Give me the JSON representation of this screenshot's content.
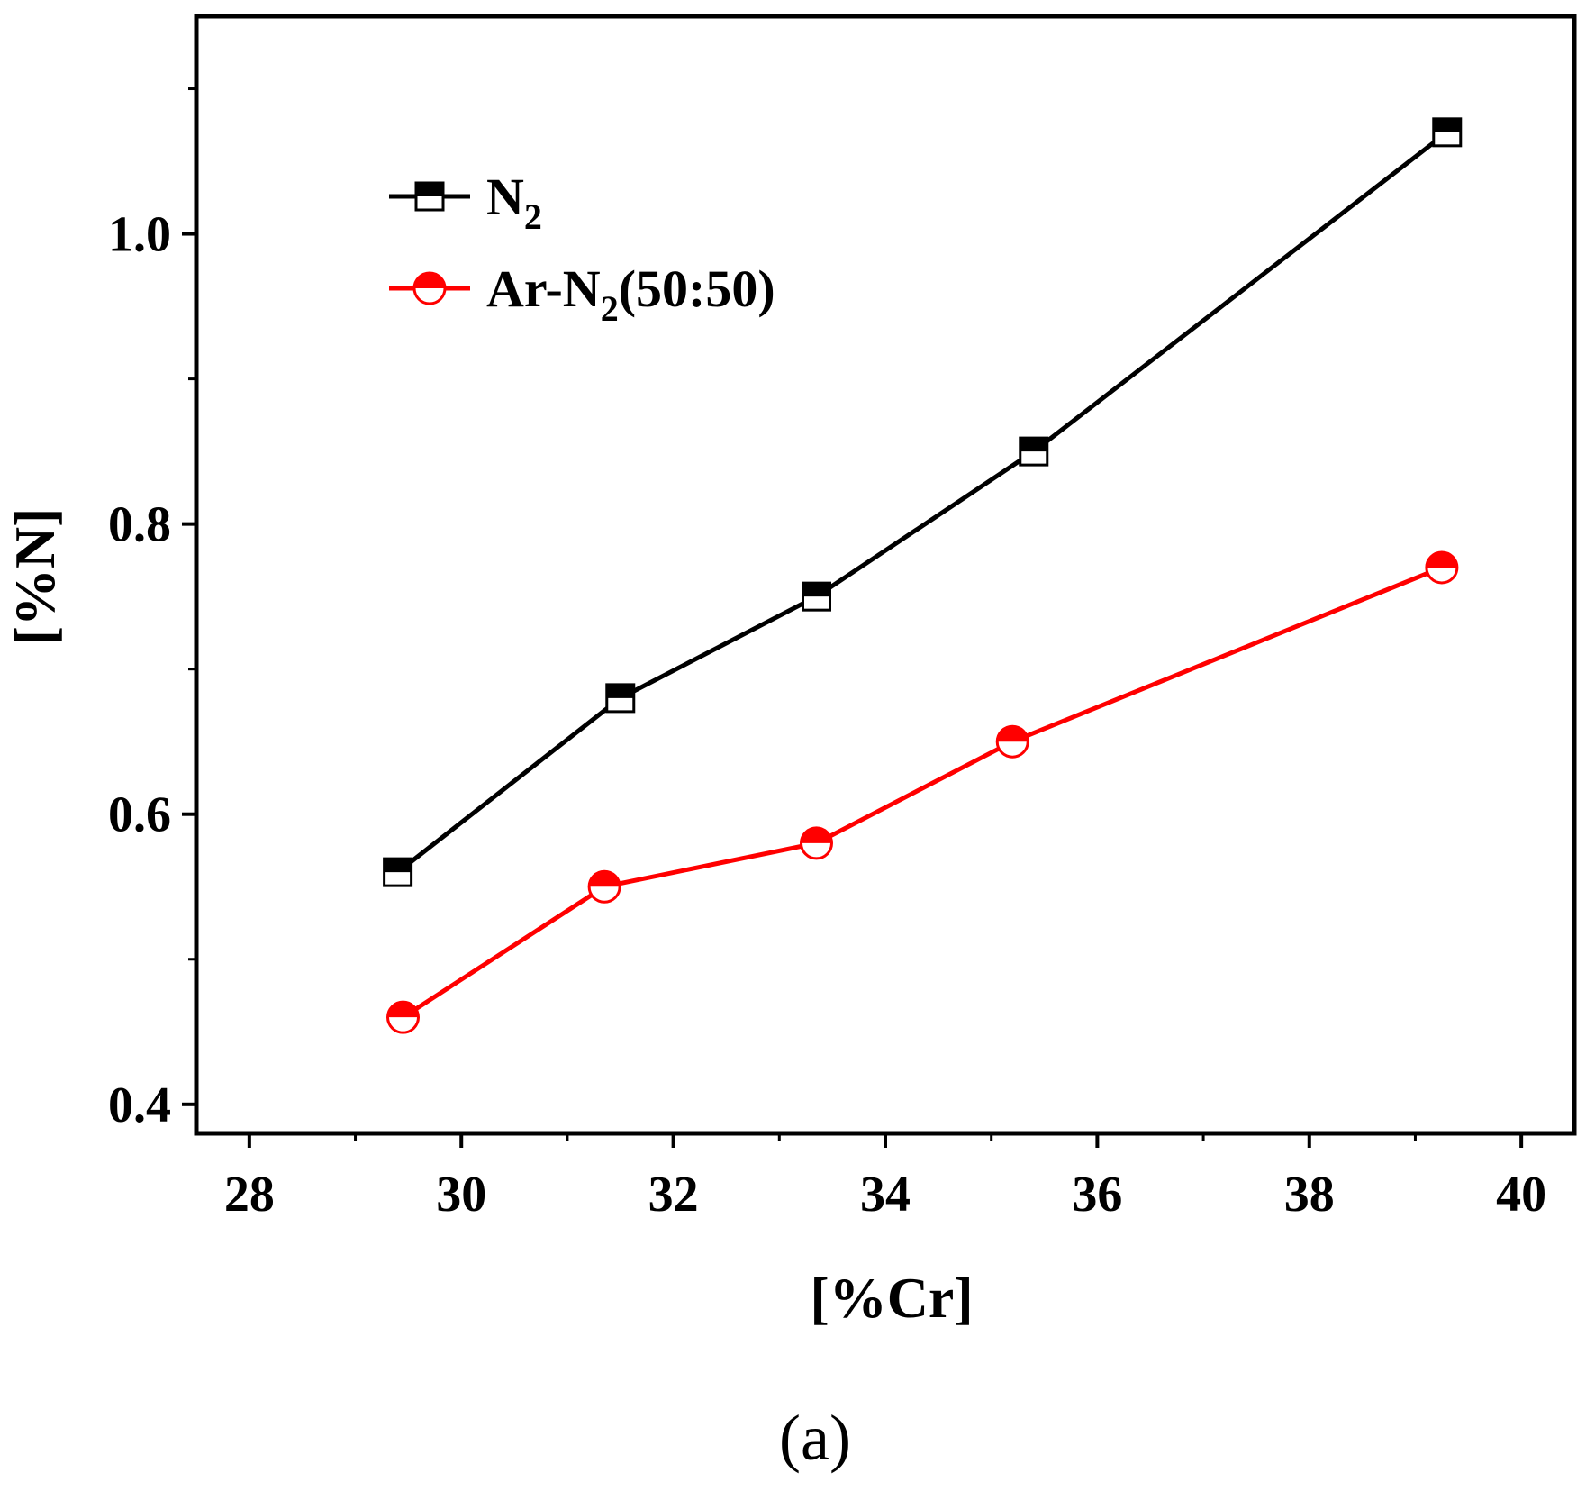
{
  "chart_data": {
    "type": "line",
    "xlabel": "[%Cr]",
    "ylabel": "[%N]",
    "xlim": [
      27.5,
      40.5
    ],
    "ylim": [
      0.38,
      1.15
    ],
    "xticks": [
      "28",
      "30",
      "32",
      "34",
      "36",
      "38",
      "40"
    ],
    "yticks": [
      "0.4",
      "0.6",
      "0.8",
      "1.0"
    ],
    "grid": false,
    "legend_position": "top-left",
    "series": [
      {
        "name_main": "N",
        "name_sub": "2",
        "name_suffix": "",
        "color": "#000000",
        "marker": "square-half-filled",
        "x": [
          29.4,
          31.5,
          33.35,
          35.4,
          39.3
        ],
        "y": [
          0.56,
          0.68,
          0.75,
          0.85,
          1.07
        ]
      },
      {
        "name_main": "Ar-N",
        "name_sub": "2",
        "name_suffix": "(50:50)",
        "color": "#ff0000",
        "marker": "circle-half-filled",
        "x": [
          29.45,
          31.35,
          33.35,
          35.2,
          39.25
        ],
        "y": [
          0.46,
          0.55,
          0.58,
          0.65,
          0.77
        ]
      }
    ]
  },
  "caption": "(a)"
}
